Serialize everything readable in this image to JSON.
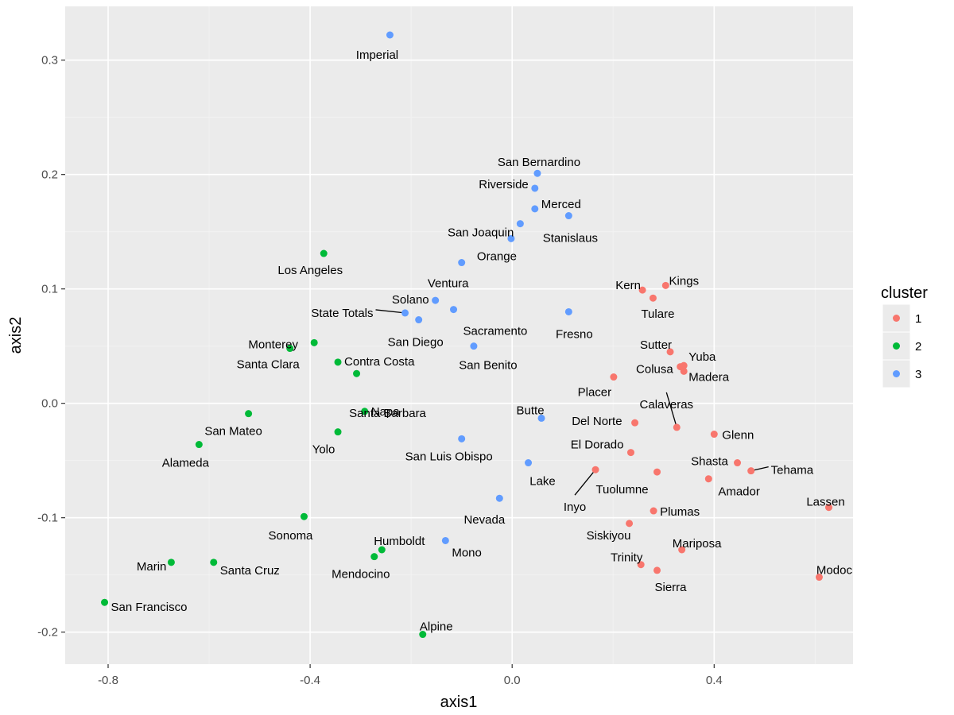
{
  "chart_data": {
    "type": "scatter",
    "xlabel": "axis1",
    "ylabel": "axis2",
    "xlim": [
      -0.885,
      0.675
    ],
    "ylim": [
      -0.228,
      0.347
    ],
    "x_ticks": [
      {
        "value": -0.8,
        "label": "-0.8"
      },
      {
        "value": -0.4,
        "label": "-0.4"
      },
      {
        "value": 0.0,
        "label": "0.0"
      },
      {
        "value": 0.4,
        "label": "0.4"
      }
    ],
    "y_ticks": [
      {
        "value": -0.2,
        "label": "-0.2"
      },
      {
        "value": -0.1,
        "label": "-0.1"
      },
      {
        "value": 0.0,
        "label": "0.0"
      },
      {
        "value": 0.1,
        "label": "0.1"
      },
      {
        "value": 0.2,
        "label": "0.2"
      },
      {
        "value": 0.3,
        "label": "0.3"
      }
    ],
    "grid": true,
    "legend": {
      "title": "cluster",
      "position": "right",
      "entries": [
        {
          "name": "1",
          "color": "#F8766D"
        },
        {
          "name": "2",
          "color": "#00BA38"
        },
        {
          "name": "3",
          "color": "#619CFF"
        }
      ]
    },
    "points": [
      {
        "label": "Imperial",
        "x": -0.242,
        "y": 0.322,
        "cluster": "3"
      },
      {
        "label": "San Bernardino",
        "x": 0.05,
        "y": 0.201,
        "cluster": "3"
      },
      {
        "label": "Riverside",
        "x": 0.045,
        "y": 0.188,
        "cluster": "3"
      },
      {
        "label": "Merced",
        "x": 0.045,
        "y": 0.17,
        "cluster": "3"
      },
      {
        "label": "Stanislaus",
        "x": 0.112,
        "y": 0.164,
        "cluster": "3"
      },
      {
        "label": "San Joaquin",
        "x": 0.016,
        "y": 0.157,
        "cluster": "3"
      },
      {
        "label": "Orange",
        "x": -0.002,
        "y": 0.144,
        "cluster": "3"
      },
      {
        "label": "Ventura",
        "x": -0.1,
        "y": 0.123,
        "cluster": "3"
      },
      {
        "label": "Solano",
        "x": -0.152,
        "y": 0.09,
        "cluster": "3"
      },
      {
        "label": "Sacramento",
        "x": -0.116,
        "y": 0.082,
        "cluster": "3"
      },
      {
        "label": "State Totals",
        "x": -0.212,
        "y": 0.079,
        "cluster": "3"
      },
      {
        "label": "San Diego",
        "x": -0.185,
        "y": 0.073,
        "cluster": "3"
      },
      {
        "label": "Fresno",
        "x": 0.112,
        "y": 0.08,
        "cluster": "3"
      },
      {
        "label": "San Benito",
        "x": -0.076,
        "y": 0.05,
        "cluster": "3"
      },
      {
        "label": "Butte",
        "x": 0.058,
        "y": -0.013,
        "cluster": "3"
      },
      {
        "label": "San Luis Obispo",
        "x": -0.1,
        "y": -0.031,
        "cluster": "3"
      },
      {
        "label": "Lake",
        "x": 0.032,
        "y": -0.052,
        "cluster": "3"
      },
      {
        "label": "Nevada",
        "x": -0.025,
        "y": -0.083,
        "cluster": "3"
      },
      {
        "label": "Mono",
        "x": -0.132,
        "y": -0.12,
        "cluster": "3"
      },
      {
        "label": "Los Angeles",
        "x": -0.373,
        "y": 0.131,
        "cluster": "2"
      },
      {
        "label": "Monterey",
        "x": -0.44,
        "y": 0.048,
        "cluster": "2"
      },
      {
        "label": "Santa Clara",
        "x": -0.392,
        "y": 0.053,
        "cluster": "2"
      },
      {
        "label": "Contra Costa",
        "x": -0.345,
        "y": 0.036,
        "cluster": "2"
      },
      {
        "label": "Santa Barbara",
        "x": -0.308,
        "y": 0.026,
        "cluster": "2"
      },
      {
        "label": "Napa",
        "x": -0.292,
        "y": -0.007,
        "cluster": "2"
      },
      {
        "label": "San Mateo",
        "x": -0.522,
        "y": -0.009,
        "cluster": "2"
      },
      {
        "label": "Yolo",
        "x": -0.345,
        "y": -0.025,
        "cluster": "2"
      },
      {
        "label": "Alameda",
        "x": -0.62,
        "y": -0.036,
        "cluster": "2"
      },
      {
        "label": "Sonoma",
        "x": -0.412,
        "y": -0.099,
        "cluster": "2"
      },
      {
        "label": "Humboldt",
        "x": -0.258,
        "y": -0.128,
        "cluster": "2"
      },
      {
        "label": "Mendocino",
        "x": -0.273,
        "y": -0.134,
        "cluster": "2"
      },
      {
        "label": "Marin",
        "x": -0.675,
        "y": -0.139,
        "cluster": "2"
      },
      {
        "label": "Santa Cruz",
        "x": -0.591,
        "y": -0.139,
        "cluster": "2"
      },
      {
        "label": "San Francisco",
        "x": -0.807,
        "y": -0.174,
        "cluster": "2"
      },
      {
        "label": "Alpine",
        "x": -0.177,
        "y": -0.202,
        "cluster": "2"
      },
      {
        "label": "Kern",
        "x": 0.258,
        "y": 0.099,
        "cluster": "1"
      },
      {
        "label": "Kings",
        "x": 0.304,
        "y": 0.103,
        "cluster": "1"
      },
      {
        "label": "Tulare",
        "x": 0.279,
        "y": 0.092,
        "cluster": "1"
      },
      {
        "label": "Sutter",
        "x": 0.313,
        "y": 0.045,
        "cluster": "1"
      },
      {
        "label": "Yuba",
        "x": 0.34,
        "y": 0.033,
        "cluster": "1"
      },
      {
        "label": "Colusa",
        "x": 0.333,
        "y": 0.032,
        "cluster": "1"
      },
      {
        "label": "Madera",
        "x": 0.34,
        "y": 0.028,
        "cluster": "1"
      },
      {
        "label": "Placer",
        "x": 0.201,
        "y": 0.023,
        "cluster": "1"
      },
      {
        "label": "Del Norte",
        "x": 0.243,
        "y": -0.017,
        "cluster": "1"
      },
      {
        "label": "Calaveras",
        "x": 0.326,
        "y": -0.021,
        "cluster": "1"
      },
      {
        "label": "Glenn",
        "x": 0.4,
        "y": -0.027,
        "cluster": "1"
      },
      {
        "label": "El Dorado",
        "x": 0.235,
        "y": -0.043,
        "cluster": "1"
      },
      {
        "label": "Shasta",
        "x": 0.446,
        "y": -0.052,
        "cluster": "1"
      },
      {
        "label": "Tehama",
        "x": 0.473,
        "y": -0.059,
        "cluster": "1"
      },
      {
        "label": "Tuolumne",
        "x": 0.287,
        "y": -0.06,
        "cluster": "1"
      },
      {
        "label": "Inyo",
        "x": 0.165,
        "y": -0.058,
        "cluster": "1"
      },
      {
        "label": "Amador",
        "x": 0.389,
        "y": -0.066,
        "cluster": "1"
      },
      {
        "label": "Lassen",
        "x": 0.627,
        "y": -0.091,
        "cluster": "1"
      },
      {
        "label": "Plumas",
        "x": 0.28,
        "y": -0.094,
        "cluster": "1"
      },
      {
        "label": "Siskiyou",
        "x": 0.232,
        "y": -0.105,
        "cluster": "1"
      },
      {
        "label": "Mariposa",
        "x": 0.336,
        "y": -0.128,
        "cluster": "1"
      },
      {
        "label": "Trinity",
        "x": 0.255,
        "y": -0.141,
        "cluster": "1"
      },
      {
        "label": "Sierra",
        "x": 0.287,
        "y": -0.146,
        "cluster": "1"
      },
      {
        "label": "Modoc",
        "x": 0.608,
        "y": -0.152,
        "cluster": "1"
      }
    ]
  },
  "colors": {
    "panel": "#EBEBEB",
    "grid_major": "#FFFFFF",
    "grid_minor": "#F2F2F2",
    "tick_mark": "#333333"
  }
}
